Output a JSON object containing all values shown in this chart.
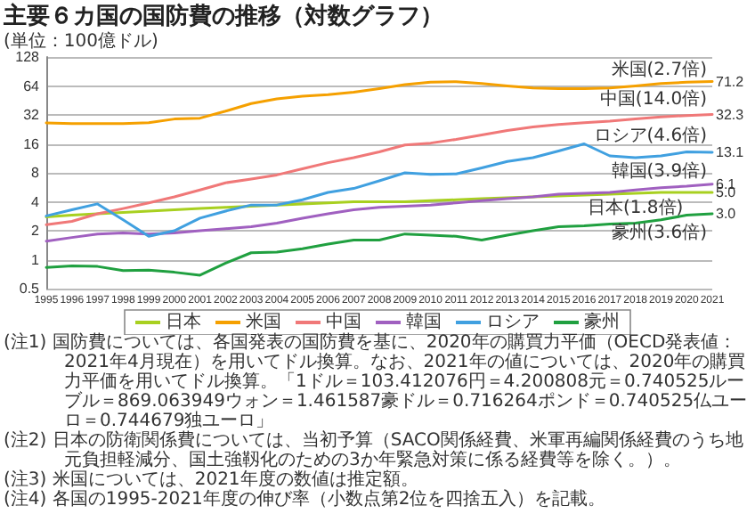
{
  "chart_data": {
    "type": "line",
    "title": "主要６カ国の国防費の推移（対数グラフ）",
    "subtitle": "(単位：100億ドル)",
    "categories": [
      "1995",
      "1996",
      "1997",
      "1998",
      "1999",
      "2000",
      "2001",
      "2002",
      "2003",
      "2004",
      "2005",
      "2006",
      "2007",
      "2008",
      "2009",
      "2010",
      "2011",
      "2012",
      "2013",
      "2014",
      "2015",
      "2016",
      "2017",
      "2018",
      "2019",
      "2020",
      "2021"
    ],
    "series": [
      {
        "name": "日本",
        "color": "#a8d020",
        "values": [
          2.78,
          2.9,
          3.0,
          3.1,
          3.2,
          3.3,
          3.4,
          3.5,
          3.6,
          3.7,
          3.8,
          3.9,
          4.0,
          4.0,
          4.0,
          4.1,
          4.2,
          4.3,
          4.4,
          4.5,
          4.6,
          4.7,
          4.8,
          4.9,
          5.0,
          5.0,
          5.0
        ],
        "value_labels": [
          null,
          null,
          null,
          null,
          null,
          null,
          null,
          null,
          null,
          null,
          null,
          null,
          null,
          null,
          null,
          null,
          null,
          null,
          null,
          null,
          null,
          null,
          null,
          null,
          null,
          null,
          "5.0"
        ]
      },
      {
        "name": "米国",
        "color": "#f5a000",
        "values": [
          26.4,
          26,
          26,
          26,
          26.5,
          29,
          29.6,
          35,
          42,
          47,
          50,
          52,
          55,
          60,
          66,
          70,
          71,
          68,
          64,
          61,
          60,
          60,
          61,
          64,
          68,
          70,
          71.2
        ],
        "value_labels": [
          null,
          null,
          null,
          null,
          null,
          null,
          null,
          null,
          null,
          null,
          null,
          null,
          null,
          null,
          null,
          null,
          null,
          null,
          null,
          null,
          null,
          null,
          null,
          null,
          null,
          null,
          "71.2"
        ]
      },
      {
        "name": "中国",
        "color": "#f07878",
        "values": [
          2.31,
          2.5,
          3.0,
          3.4,
          3.9,
          4.5,
          5.3,
          6.3,
          6.9,
          7.6,
          8.8,
          10.2,
          11.5,
          13.2,
          15.6,
          16.3,
          17.8,
          19.8,
          22,
          24,
          25.5,
          26.5,
          27.5,
          29,
          30.5,
          31.5,
          32.3
        ],
        "value_labels": [
          null,
          null,
          null,
          null,
          null,
          null,
          null,
          null,
          null,
          null,
          null,
          null,
          null,
          null,
          null,
          null,
          null,
          null,
          null,
          null,
          null,
          null,
          null,
          null,
          null,
          null,
          "32.3"
        ]
      },
      {
        "name": "韓国",
        "color": "#a060c0",
        "values": [
          1.56,
          1.7,
          1.85,
          1.9,
          1.85,
          1.9,
          2.0,
          2.1,
          2.2,
          2.4,
          2.7,
          3.0,
          3.3,
          3.5,
          3.6,
          3.7,
          3.9,
          4.1,
          4.3,
          4.5,
          4.8,
          4.9,
          5.0,
          5.3,
          5.6,
          5.8,
          6.1
        ],
        "value_labels": [
          null,
          null,
          null,
          null,
          null,
          null,
          null,
          null,
          null,
          null,
          null,
          null,
          null,
          null,
          null,
          null,
          null,
          null,
          null,
          null,
          null,
          null,
          null,
          null,
          null,
          null,
          "6.1"
        ]
      },
      {
        "name": "ロシア",
        "color": "#40a0e0",
        "values": [
          2.85,
          3.3,
          3.8,
          2.6,
          1.75,
          2.0,
          2.7,
          3.2,
          3.7,
          3.7,
          4.2,
          5.0,
          5.5,
          6.6,
          8.0,
          7.7,
          7.8,
          9.0,
          10.5,
          11.5,
          13.5,
          16.0,
          12.0,
          11.5,
          12.0,
          13.2,
          13.1
        ],
        "value_labels": [
          null,
          null,
          null,
          null,
          null,
          null,
          null,
          null,
          null,
          null,
          null,
          null,
          null,
          null,
          null,
          null,
          null,
          null,
          null,
          null,
          null,
          null,
          null,
          null,
          null,
          null,
          "13.1"
        ]
      },
      {
        "name": "豪州",
        "color": "#20a040",
        "values": [
          0.83,
          0.86,
          0.85,
          0.77,
          0.78,
          0.74,
          0.69,
          0.92,
          1.18,
          1.2,
          1.3,
          1.45,
          1.6,
          1.6,
          1.85,
          1.8,
          1.75,
          1.6,
          1.8,
          2.0,
          2.2,
          2.25,
          2.35,
          2.4,
          2.6,
          2.9,
          3.0
        ],
        "value_labels": [
          null,
          null,
          null,
          null,
          null,
          null,
          null,
          null,
          null,
          null,
          null,
          null,
          null,
          null,
          null,
          null,
          null,
          null,
          null,
          null,
          null,
          null,
          null,
          null,
          null,
          null,
          "3.0"
        ]
      }
    ],
    "log": "y",
    "ylim": [
      0.5,
      128
    ],
    "yticks": [
      0.5,
      1,
      2,
      4,
      8,
      16,
      32,
      64,
      128
    ],
    "grid": "y",
    "legend": "bottom",
    "marker": "none",
    "line_style": "solid",
    "annotations": [
      {
        "text": "米国(2.7倍)",
        "x": "2019",
        "y": 68
      },
      {
        "text": "中国(14.0倍)",
        "x": "2019",
        "y": 30.5
      },
      {
        "text": "ロシア(4.6倍)",
        "x": "2019",
        "y": 12.0
      },
      {
        "text": "韓国(3.9倍)",
        "x": "2019",
        "y": 5.6
      },
      {
        "text": "日本(1.8倍)",
        "x": "2018",
        "y": 4.9
      },
      {
        "text": "豪州(3.6倍)",
        "x": "2019",
        "y": 2.6
      },
      "(注1) 国防費については、各国発表の国防費を基に、2020年の購買力平価（OECD発表値：2021年4月現在）を用いてドル換算。なお、2021年の値については、2020年の購買力平価を用いてドル換算。「1ドル＝103.412076円＝4.200808元＝0.740525ルーブル＝869.063949ウォン＝1.461587豪ドル＝0.716264ポンド＝0.740525仏ユーロ＝0.744679独ユーロ」",
      "(注2) 日本の防衛関係費については、当初予算（SACO関係経費、米軍再編関係経費のうち地元負担軽減分、国土強靱化のための3か年緊急対策に係る経費等を除く。）。",
      "(注3) 米国については、2021年度の数値は推定額。",
      "(注4) 各国の1995-2021年度の伸び率（小数点第2位を四捨五入）を記載。"
    ]
  }
}
